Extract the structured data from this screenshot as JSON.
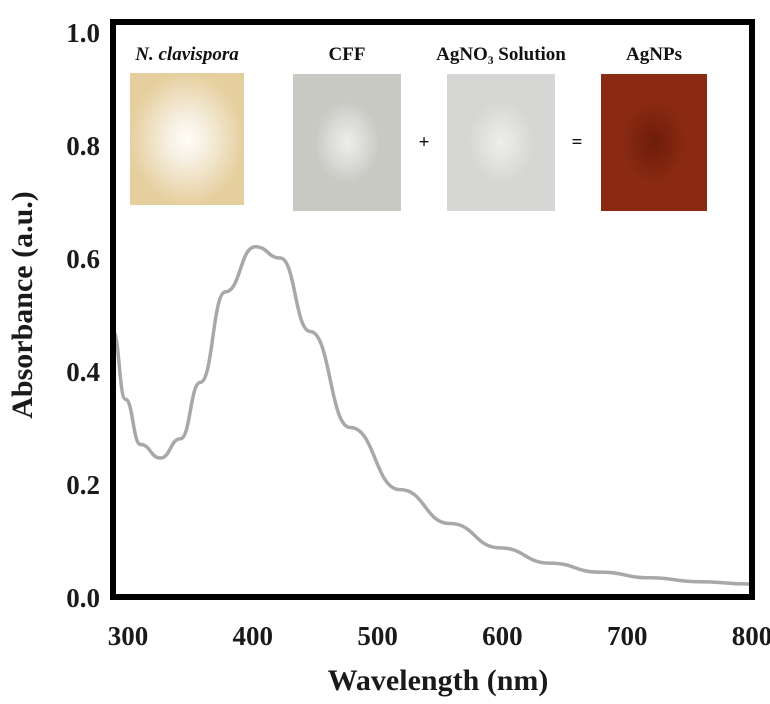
{
  "chart_data": {
    "type": "line",
    "title": "",
    "xlabel": "Wavelength (nm)",
    "ylabel": "Absorbance (a.u.)",
    "xlim": [
      288,
      800
    ],
    "ylim": [
      0,
      1.0
    ],
    "xticks": [
      300,
      400,
      500,
      600,
      700,
      800
    ],
    "xtick_labels": [
      "300",
      "400",
      "500",
      "600",
      "700",
      "800"
    ],
    "yticks": [
      0,
      0.2,
      0.4,
      0.6,
      0.8,
      1.0
    ],
    "ytick_labels": [
      "0.0",
      "0.2",
      "0.4",
      "0.6",
      "0.8",
      "1.0"
    ],
    "grid": false,
    "line_color": "#a8a8a8",
    "series": [
      {
        "x": [
          288,
          298,
          310,
          326,
          342,
          358,
          378,
          402,
          422,
          446,
          478,
          518,
          558,
          598,
          638,
          678,
          718,
          758,
          798
        ],
        "y": [
          0.47,
          0.35,
          0.27,
          0.246,
          0.28,
          0.38,
          0.54,
          0.62,
          0.6,
          0.47,
          0.3,
          0.19,
          0.13,
          0.087,
          0.06,
          0.044,
          0.034,
          0.027,
          0.023
        ]
      }
    ],
    "inset": {
      "labels": [
        "N. clavispora",
        "CFF",
        "AgNO₃ Solution",
        "AgNPs"
      ],
      "operators": [
        "+",
        "="
      ],
      "photo_colors": [
        "#e6cf9f",
        "#c9c9c4",
        "#d6d7d4",
        "#8a2a12"
      ]
    }
  }
}
